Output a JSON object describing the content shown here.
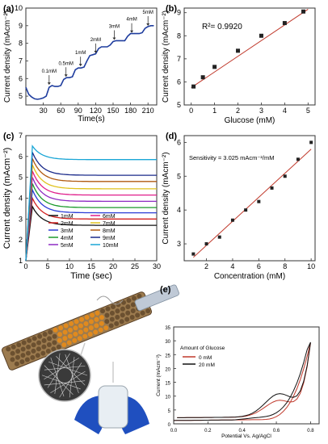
{
  "chart_data": [
    {
      "panel": "(a)",
      "type": "line",
      "xlabel": "Time(s)",
      "ylabel": "Current density (mAcm⁻²)",
      "xlim": [
        0,
        225
      ],
      "ylim": [
        4.5,
        10
      ],
      "xticks": [
        "30",
        "60",
        "90",
        "120",
        "150",
        "180",
        "210"
      ],
      "yticks": [
        "5",
        "6",
        "7",
        "8",
        "9",
        "10"
      ],
      "x": [
        0,
        5,
        10,
        15,
        20,
        25,
        30,
        35,
        40,
        45,
        50,
        55,
        60,
        65,
        70,
        75,
        80,
        85,
        90,
        95,
        100,
        105,
        110,
        115,
        120,
        125,
        130,
        135,
        140,
        145,
        150,
        155,
        160,
        165,
        170,
        175,
        180,
        185,
        190,
        195,
        200,
        205,
        210,
        215,
        220
      ],
      "y": [
        5.5,
        5.1,
        4.95,
        4.85,
        4.82,
        4.85,
        4.9,
        5.0,
        5.5,
        5.6,
        5.55,
        5.55,
        5.6,
        5.95,
        6.05,
        6.05,
        6.1,
        6.5,
        6.6,
        6.6,
        6.65,
        7.0,
        7.3,
        7.35,
        7.4,
        7.7,
        7.8,
        7.8,
        7.8,
        7.9,
        8.1,
        8.15,
        8.15,
        8.15,
        8.15,
        8.4,
        8.55,
        8.55,
        8.55,
        8.55,
        8.6,
        8.85,
        8.95,
        9.0,
        9.0
      ],
      "annotations": [
        {
          "label": "0.1mM",
          "x": 40,
          "y": 5.55
        },
        {
          "label": "0.5mM",
          "x": 69,
          "y": 6.0
        },
        {
          "label": "1mM",
          "x": 94,
          "y": 6.6
        },
        {
          "label": "2mM",
          "x": 120,
          "y": 7.35
        },
        {
          "label": "3mM",
          "x": 152,
          "y": 8.1
        },
        {
          "label": "4mM",
          "x": 182,
          "y": 8.5
        },
        {
          "label": "5mM",
          "x": 210,
          "y": 8.9
        }
      ]
    },
    {
      "panel": "(b)",
      "type": "scatter",
      "xlabel": "Glucose (mM)",
      "ylabel": "Current density (mAcm⁻²)",
      "annotation": "R²= 0.9920",
      "xlim": [
        -0.3,
        5.3
      ],
      "ylim": [
        5,
        9.2
      ],
      "xticks": [
        "0",
        "1",
        "2",
        "3",
        "4",
        "5"
      ],
      "yticks": [
        "5",
        "6",
        "7",
        "8",
        "9"
      ],
      "x": [
        0.1,
        0.5,
        1,
        2,
        3,
        4,
        4.8
      ],
      "y": [
        5.8,
        6.2,
        6.65,
        7.35,
        8.0,
        8.55,
        9.05
      ],
      "fit": [
        [
          0,
          5.75
        ],
        [
          5,
          9.15
        ]
      ]
    },
    {
      "panel": "(c)",
      "type": "line",
      "xlabel": "Time (sec)",
      "ylabel": "Current density (mAcm⁻²)",
      "xlim": [
        0,
        30
      ],
      "ylim": [
        1,
        7
      ],
      "xticks": [
        "0",
        "5",
        "10",
        "15",
        "20",
        "25",
        "30"
      ],
      "yticks": [
        "1",
        "2",
        "3",
        "4",
        "5",
        "6",
        "7"
      ],
      "series": [
        {
          "name": "1mM",
          "color": "#111111",
          "peak": 3.6,
          "steady": 2.7
        },
        {
          "name": "2mM",
          "color": "#d32020",
          "peak": 4.0,
          "steady": 3.0
        },
        {
          "name": "3mM",
          "color": "#2b3cd6",
          "peak": 4.4,
          "steady": 3.3
        },
        {
          "name": "4mM",
          "color": "#1a9a2a",
          "peak": 4.7,
          "steady": 3.55
        },
        {
          "name": "5mM",
          "color": "#8e2bc2",
          "peak": 5.0,
          "steady": 3.85
        },
        {
          "name": "6mM",
          "color": "#e01d8a",
          "peak": 5.3,
          "steady": 4.15
        },
        {
          "name": "7mM",
          "color": "#e0c21d",
          "peak": 5.6,
          "steady": 4.45
        },
        {
          "name": "8mM",
          "color": "#b05a10",
          "peak": 5.9,
          "steady": 4.8
        },
        {
          "name": "9mM",
          "color": "#1a2a8a",
          "peak": 6.2,
          "steady": 5.1
        },
        {
          "name": "10mM",
          "color": "#1aa6d6",
          "peak": 6.5,
          "steady": 5.85
        }
      ]
    },
    {
      "panel": "(d)",
      "type": "scatter",
      "xlabel": "Concentration (mM)",
      "ylabel": "Current density (mAcm⁻²)",
      "annotation": "Sensitivity = 3.025 mAcm⁻²/mM",
      "xlim": [
        0.3,
        10.3
      ],
      "ylim": [
        2.5,
        6.2
      ],
      "xticks": [
        "2",
        "4",
        "6",
        "8",
        "10"
      ],
      "yticks": [
        "3",
        "4",
        "5",
        "6"
      ],
      "x": [
        1,
        2,
        3,
        4,
        5,
        6,
        7,
        8,
        9,
        10
      ],
      "y": [
        2.7,
        3.0,
        3.2,
        3.7,
        4.0,
        4.25,
        4.65,
        5.0,
        5.5,
        6.0
      ],
      "fit": [
        [
          1,
          2.6
        ],
        [
          10,
          5.8
        ]
      ]
    },
    {
      "panel": "(e)",
      "type": "line",
      "xlabel": "Potential Vs. Ag/AgCl",
      "ylabel": "Current (mAcm⁻²)",
      "legend_title": "Amount of Glucose",
      "xlim": [
        0,
        0.85
      ],
      "ylim": [
        0,
        35
      ],
      "xticks": [
        "0.0",
        "0.2",
        "0.4",
        "0.6",
        "0.8"
      ],
      "yticks": [
        "0",
        "5",
        "10",
        "15",
        "20",
        "25",
        "30",
        "35"
      ],
      "series": [
        {
          "name": "0 mM",
          "color": "#c0392b"
        },
        {
          "name": "20 mM",
          "color": "#111111"
        }
      ]
    }
  ]
}
